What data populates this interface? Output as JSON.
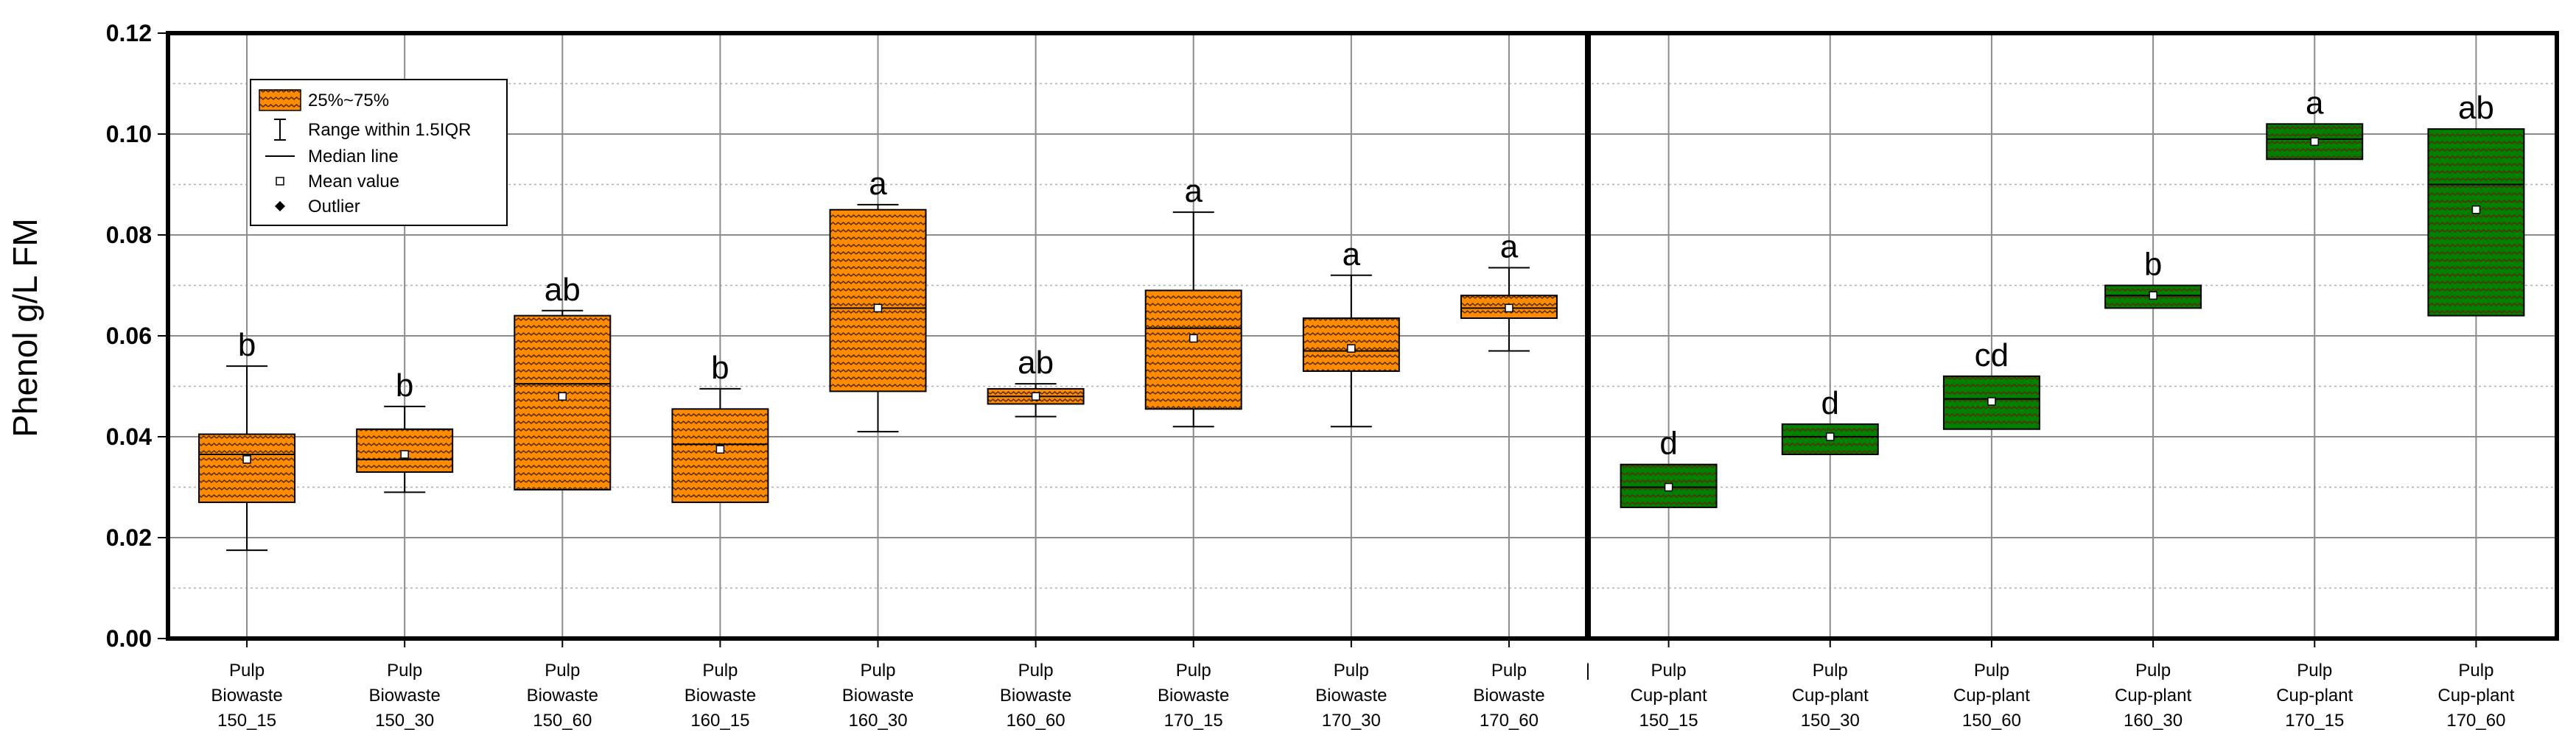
{
  "chart_data": {
    "type": "box",
    "ylabel": "Phenol g/L FM",
    "ylim": [
      0,
      0.12
    ],
    "yticks": [
      "0.00",
      "0.02",
      "0.04",
      "0.06",
      "0.08",
      "0.10",
      "0.12"
    ],
    "grid": true,
    "legend_position": "top-left",
    "legend": {
      "box": "25%~75%",
      "range": "Range within 1.5IQR",
      "median": "Median line",
      "mean": "Mean value",
      "outlier": "Outlier"
    },
    "colors": {
      "biowaste": "#ff8c00",
      "cupplant": "#008000",
      "pattern": "#5a2d00"
    },
    "divider_label": "|",
    "groups": [
      {
        "series": "Pulp Biowaste",
        "color": "biowaste",
        "items": [
          {
            "label": [
              "Pulp",
              "Biowaste",
              "150_15"
            ],
            "q1": 0.027,
            "q3": 0.0405,
            "median": 0.0365,
            "mean": 0.0355,
            "whisker_low": 0.0175,
            "whisker_high": 0.054,
            "sig": "b"
          },
          {
            "label": [
              "Pulp",
              "Biowaste",
              "150_30"
            ],
            "q1": 0.033,
            "q3": 0.0415,
            "median": 0.0355,
            "mean": 0.0365,
            "whisker_low": 0.029,
            "whisker_high": 0.046,
            "sig": "b"
          },
          {
            "label": [
              "Pulp",
              "Biowaste",
              "150_60"
            ],
            "q1": 0.0295,
            "q3": 0.064,
            "median": 0.0505,
            "mean": 0.048,
            "whisker_low": null,
            "whisker_high": 0.065,
            "sig": "ab"
          },
          {
            "label": [
              "Pulp",
              "Biowaste",
              "160_15"
            ],
            "q1": 0.027,
            "q3": 0.0455,
            "median": 0.0385,
            "mean": 0.0375,
            "whisker_low": null,
            "whisker_high": 0.0495,
            "sig": "b"
          },
          {
            "label": [
              "Pulp",
              "Biowaste",
              "160_30"
            ],
            "q1": 0.049,
            "q3": 0.085,
            "median": 0.0655,
            "mean": 0.0655,
            "whisker_low": 0.041,
            "whisker_high": 0.086,
            "sig": "a"
          },
          {
            "label": [
              "Pulp",
              "Biowaste",
              "160_60"
            ],
            "q1": 0.0465,
            "q3": 0.0495,
            "median": 0.048,
            "mean": 0.048,
            "whisker_low": 0.044,
            "whisker_high": 0.0505,
            "sig": "ab"
          },
          {
            "label": [
              "Pulp",
              "Biowaste",
              "170_15"
            ],
            "q1": 0.0455,
            "q3": 0.069,
            "median": 0.0615,
            "mean": 0.0595,
            "whisker_low": 0.042,
            "whisker_high": 0.0845,
            "sig": "a"
          },
          {
            "label": [
              "Pulp",
              "Biowaste",
              "170_30"
            ],
            "q1": 0.053,
            "q3": 0.0635,
            "median": 0.057,
            "mean": 0.0575,
            "whisker_low": 0.042,
            "whisker_high": 0.072,
            "sig": "a"
          },
          {
            "label": [
              "Pulp",
              "Biowaste",
              "170_60"
            ],
            "q1": 0.0635,
            "q3": 0.068,
            "median": 0.0655,
            "mean": 0.0655,
            "whisker_low": 0.057,
            "whisker_high": 0.0735,
            "sig": "a"
          }
        ]
      },
      {
        "series": "Pulp Cup-plant",
        "color": "cupplant",
        "items": [
          {
            "label": [
              "Pulp",
              "Cup-plant",
              "150_15"
            ],
            "q1": 0.026,
            "q3": 0.0345,
            "median": 0.03,
            "mean": 0.03,
            "whisker_low": null,
            "whisker_high": null,
            "sig": "d"
          },
          {
            "label": [
              "Pulp",
              "Cup-plant",
              "150_30"
            ],
            "q1": 0.0365,
            "q3": 0.0425,
            "median": 0.04,
            "mean": 0.04,
            "whisker_low": null,
            "whisker_high": null,
            "sig": "d"
          },
          {
            "label": [
              "Pulp",
              "Cup-plant",
              "150_60"
            ],
            "q1": 0.0415,
            "q3": 0.052,
            "median": 0.0475,
            "mean": 0.047,
            "whisker_low": null,
            "whisker_high": null,
            "sig": "cd"
          },
          {
            "label": [
              "Pulp",
              "Cup-plant",
              "160_30"
            ],
            "q1": 0.0655,
            "q3": 0.07,
            "median": 0.068,
            "mean": 0.068,
            "whisker_low": null,
            "whisker_high": null,
            "sig": "b"
          },
          {
            "label": [
              "Pulp",
              "Cup-plant",
              "170_15"
            ],
            "q1": 0.095,
            "q3": 0.102,
            "median": 0.099,
            "mean": 0.0985,
            "whisker_low": null,
            "whisker_high": null,
            "sig": "a"
          },
          {
            "label": [
              "Pulp",
              "Cup-plant",
              "170_60"
            ],
            "q1": 0.064,
            "q3": 0.101,
            "median": 0.09,
            "mean": 0.085,
            "whisker_low": null,
            "whisker_high": null,
            "sig": "ab"
          }
        ]
      }
    ]
  }
}
